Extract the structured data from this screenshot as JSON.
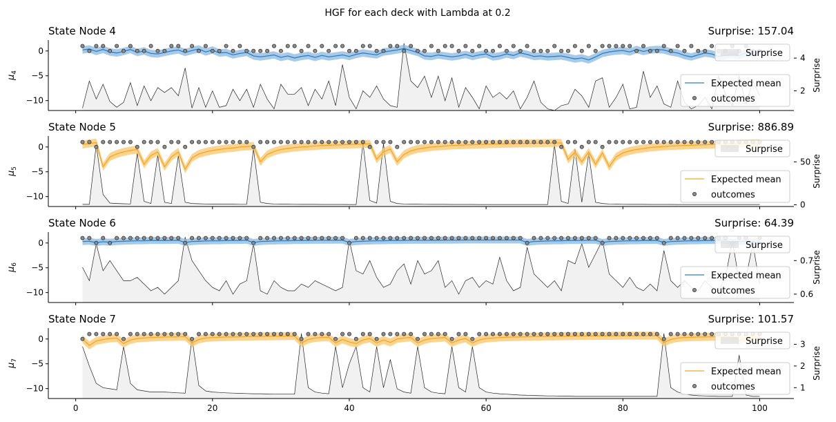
{
  "figure_title": "HGF for each deck with Lambda at 0.2",
  "chart_data": [
    {
      "type": "line",
      "title": "State Node 4",
      "surprise_label": "Surprise: 157.04",
      "ylabel": "μ4",
      "ylabel_sub": "4",
      "y2label": "Surprise",
      "xlim": [
        -4,
        105
      ],
      "ylim": [
        -12,
        2.2
      ],
      "yticks": [
        0,
        -5,
        -10
      ],
      "y2lim": [
        0.8,
        5.1
      ],
      "y2ticks": [
        2,
        4
      ],
      "xticks": [
        0,
        20,
        40,
        60,
        80,
        100
      ],
      "color": "#2d7dc4",
      "band_color": "#88b8e0",
      "legend": {
        "mean": "Expected mean",
        "outcomes": "outcomes",
        "surprise": "Surprise"
      },
      "outcomes": [
        1,
        0,
        1,
        1,
        0,
        1,
        0,
        1,
        0,
        0,
        1,
        0,
        0,
        1,
        1,
        0,
        1,
        0,
        1,
        0,
        0,
        1,
        0,
        1,
        0,
        0,
        0,
        0,
        1,
        0,
        1,
        1,
        0,
        1,
        0,
        1,
        0,
        1,
        1,
        0,
        0,
        1,
        1,
        0,
        0,
        1,
        1,
        0,
        1,
        0,
        0,
        1,
        0,
        1,
        1,
        0,
        1,
        0,
        1,
        0,
        0,
        1,
        0,
        1,
        0,
        1,
        0,
        0,
        0,
        1,
        0,
        0,
        1,
        0,
        1,
        0,
        1,
        1,
        1,
        1,
        1,
        0,
        1,
        0,
        0,
        1,
        0,
        1,
        0,
        1,
        0,
        0,
        1,
        0,
        0,
        1,
        0,
        1,
        0,
        0
      ],
      "surprise": [
        0.95,
        2.6,
        1.5,
        2.4,
        1.35,
        1.0,
        1.3,
        2.5,
        1.1,
        2.3,
        1.4,
        2.2,
        1.9,
        2.2,
        1.7,
        3.4,
        0.95,
        2.2,
        1.0,
        2.0,
        1.0,
        1.1,
        2.1,
        1.4,
        2.1,
        1.0,
        2.4,
        1.5,
        0.9,
        2.4,
        1.8,
        1.8,
        2.2,
        1.1,
        2.1,
        1.5,
        2.6,
        1.1,
        3.6,
        1.6,
        0.9,
        2.0,
        1.6,
        2.3,
        1.5,
        1.1,
        1.0,
        4.9,
        2.6,
        2.2,
        2.9,
        1.6,
        2.9,
        1.4,
        2.8,
        1.0,
        2.2,
        1.6,
        0.9,
        2.3,
        1.6,
        1.9,
        1.5,
        2.0,
        0.9,
        1.6,
        2.6,
        1.3,
        0.9,
        0.8,
        1.1,
        1.2,
        2.1,
        1.7,
        1.0,
        2.6,
        2.8,
        1.0,
        1.6,
        2.4,
        0.9,
        1.0,
        3.2,
        1.6,
        2.3,
        1.2,
        1.0,
        2.6,
        1.3,
        0.9,
        1.1,
        1.6,
        0.9,
        2.9,
        1.8,
        1.1,
        2.9,
        1.2,
        2.6,
        1.7
      ],
      "mean": [
        0.2,
        0.4,
        -0.1,
        0.3,
        -0.2,
        -0.4,
        -0.1,
        0.3,
        -0.3,
        0.0,
        -0.5,
        -0.6,
        -0.3,
        0.0,
        0.2,
        -0.3,
        0.1,
        0.4,
        -0.2,
        0.2,
        -0.4,
        -0.3,
        -0.8,
        -0.5,
        -0.3,
        -1.0,
        -1.2,
        -1.0,
        -0.8,
        -1.3,
        -1.0,
        -1.4,
        -1.1,
        -0.9,
        -1.3,
        -0.9,
        -1.2,
        -1.0,
        -0.8,
        -1.1,
        -0.7,
        -0.4,
        -0.6,
        -0.8,
        -0.2,
        0.0,
        0.2,
        0.5,
        0.1,
        -0.3,
        -1.0,
        -1.1,
        -0.8,
        -1.0,
        -1.2,
        -1.0,
        -0.7,
        -1.1,
        -0.8,
        -0.6,
        -1.2,
        -1.0,
        -0.6,
        -0.9,
        -0.4,
        -0.7,
        -1.1,
        -1.0,
        -1.2,
        -1.1,
        -1.0,
        -1.3,
        -1.6,
        -1.4,
        -1.8,
        -1.2,
        -0.5,
        -0.2,
        0.0,
        0.1,
        -0.2,
        0.3,
        -0.1,
        0.2,
        0.3,
        0.2,
        -0.2,
        -0.4,
        -0.9,
        -1.2,
        -0.8,
        -0.4,
        -0.6,
        -1.1,
        -0.9,
        -0.7,
        -0.9,
        -0.4,
        -0.6,
        -0.3
      ],
      "band": 0.75
    },
    {
      "type": "line",
      "title": "State Node 5",
      "surprise_label": "Surprise: 886.89",
      "ylabel": "μ5",
      "ylabel_sub": "5",
      "y2label": "Surprise",
      "xlim": [
        -4,
        105
      ],
      "ylim": [
        -12,
        2.2
      ],
      "yticks": [
        0,
        -5,
        -10
      ],
      "y2lim": [
        -2,
        80
      ],
      "y2ticks": [
        0,
        50
      ],
      "xticks": [
        0,
        20,
        40,
        60,
        80,
        100
      ],
      "color": "#f5a623",
      "band_color": "#f9c56b",
      "legend": {
        "mean": "Expected mean",
        "outcomes": "outcomes",
        "surprise": "Surprise"
      },
      "outcomes": [
        1,
        1,
        0,
        1,
        1,
        1,
        1,
        1,
        0,
        1,
        1,
        1,
        0,
        1,
        1,
        0,
        1,
        1,
        1,
        1,
        1,
        1,
        1,
        1,
        1,
        0,
        1,
        1,
        1,
        1,
        1,
        1,
        1,
        1,
        1,
        1,
        1,
        1,
        1,
        1,
        1,
        1,
        0,
        1,
        1,
        1,
        0,
        1,
        1,
        1,
        1,
        1,
        1,
        1,
        1,
        1,
        1,
        1,
        1,
        1,
        1,
        1,
        1,
        1,
        1,
        1,
        1,
        1,
        1,
        1,
        0,
        1,
        1,
        0,
        1,
        1,
        0,
        1,
        1,
        1,
        1,
        1,
        1,
        1,
        1,
        1,
        1,
        1,
        1,
        1,
        1,
        1,
        1,
        1,
        1,
        1,
        1,
        1,
        1,
        1
      ],
      "surprise": [
        0.5,
        0.5,
        70,
        12,
        2,
        1.5,
        1.2,
        1.0,
        60,
        4,
        1.5,
        58,
        3,
        1.5,
        57,
        3,
        1.5,
        1.2,
        1.0,
        0.9,
        0.8,
        0.7,
        0.7,
        0.6,
        0.6,
        65,
        3,
        1.5,
        1.0,
        0.8,
        0.7,
        0.6,
        0.5,
        0.5,
        0.5,
        0.4,
        0.4,
        0.4,
        0.4,
        0.3,
        0.3,
        72,
        5,
        2,
        71,
        4,
        1.5,
        1.0,
        0.8,
        0.7,
        0.6,
        0.5,
        0.5,
        0.5,
        0.4,
        0.4,
        0.4,
        0.4,
        0.3,
        0.3,
        0.3,
        0.3,
        0.3,
        0.3,
        0.3,
        0.3,
        0.3,
        0.3,
        0.3,
        70,
        4,
        1.5,
        65,
        3,
        60,
        3,
        1.5,
        1.0,
        0.8,
        0.6,
        0.5,
        0.5,
        0.5,
        0.4,
        0.4,
        0.4,
        0.4,
        0.3,
        0.3,
        0.3,
        0.3,
        0.3,
        0.3,
        0.3,
        0.3,
        0.3,
        0.3,
        0.3,
        0.3,
        0.3
      ],
      "mean": [
        0.5,
        0.7,
        0.9,
        -4.0,
        -2.0,
        -1.4,
        -1.0,
        -0.7,
        -0.5,
        -3.5,
        -1.7,
        -1.0,
        -4.0,
        -2.0,
        -1.0,
        -4.5,
        -2.2,
        -1.4,
        -1.0,
        -0.7,
        -0.5,
        -0.3,
        -0.2,
        0.0,
        0.1,
        0.2,
        -3.0,
        -1.5,
        -0.9,
        -0.5,
        -0.3,
        -0.1,
        0.0,
        0.1,
        0.2,
        0.3,
        0.35,
        0.4,
        0.45,
        0.5,
        0.55,
        0.6,
        0.65,
        -2.5,
        -1.0,
        -0.4,
        -3.0,
        -1.5,
        -0.8,
        -0.4,
        -0.2,
        0.0,
        0.1,
        0.2,
        0.3,
        0.35,
        0.4,
        0.45,
        0.5,
        0.55,
        0.6,
        0.62,
        0.65,
        0.68,
        0.7,
        0.72,
        0.74,
        0.76,
        0.78,
        0.8,
        0.82,
        -2.5,
        -1.0,
        -3.0,
        -1.0,
        -3.5,
        -1.2,
        -4.0,
        -2.0,
        -1.2,
        -0.8,
        -0.5,
        -0.3,
        -0.1,
        0.0,
        0.1,
        0.2,
        0.25,
        0.3,
        0.35,
        0.4,
        0.45,
        0.5,
        0.55,
        0.6,
        0.62,
        0.65,
        0.68,
        0.7,
        0.72
      ],
      "band": 0.8
    },
    {
      "type": "line",
      "title": "State Node 6",
      "surprise_label": "Surprise: 64.39",
      "ylabel": "μ6",
      "ylabel_sub": "6",
      "y2label": "Surprise",
      "xlim": [
        -4,
        105
      ],
      "ylim": [
        -12,
        2.2
      ],
      "yticks": [
        0,
        -5,
        -10
      ],
      "y2lim": [
        0.575,
        0.785
      ],
      "y2ticks": [
        0.6,
        0.7
      ],
      "xticks": [
        0,
        20,
        40,
        60,
        80,
        100
      ],
      "color": "#2d7dc4",
      "band_color": "#88b8e0",
      "legend": {
        "mean": "Expected mean",
        "outcomes": "outcomes",
        "surprise": "Surprise"
      },
      "outcomes": [
        1,
        1,
        0,
        1,
        0,
        1,
        1,
        1,
        1,
        1,
        1,
        1,
        1,
        1,
        1,
        0,
        1,
        1,
        1,
        1,
        1,
        1,
        1,
        1,
        1,
        0,
        1,
        1,
        1,
        1,
        1,
        1,
        1,
        1,
        1,
        1,
        1,
        1,
        1,
        0,
        1,
        1,
        1,
        1,
        1,
        1,
        1,
        1,
        1,
        1,
        1,
        1,
        1,
        1,
        1,
        1,
        1,
        1,
        1,
        1,
        1,
        1,
        1,
        1,
        1,
        0,
        1,
        1,
        1,
        1,
        1,
        1,
        1,
        1,
        1,
        1,
        0,
        1,
        1,
        1,
        1,
        1,
        1,
        1,
        1,
        0,
        1,
        1,
        1,
        1,
        1,
        1,
        1,
        1,
        1,
        0,
        1,
        1,
        0,
        1
      ],
      "surprise": [
        0.68,
        0.64,
        0.75,
        0.67,
        0.7,
        0.67,
        0.64,
        0.64,
        0.65,
        0.63,
        0.61,
        0.62,
        0.6,
        0.62,
        0.64,
        0.77,
        0.7,
        0.67,
        0.64,
        0.62,
        0.61,
        0.64,
        0.6,
        0.63,
        0.64,
        0.75,
        0.61,
        0.6,
        0.64,
        0.62,
        0.61,
        0.61,
        0.63,
        0.62,
        0.64,
        0.63,
        0.62,
        0.61,
        0.62,
        0.76,
        0.67,
        0.66,
        0.7,
        0.65,
        0.62,
        0.63,
        0.67,
        0.69,
        0.63,
        0.7,
        0.66,
        0.67,
        0.7,
        0.62,
        0.64,
        0.6,
        0.64,
        0.65,
        0.62,
        0.64,
        0.63,
        0.71,
        0.64,
        0.61,
        0.62,
        0.74,
        0.66,
        0.64,
        0.62,
        0.64,
        0.61,
        0.7,
        0.69,
        0.75,
        0.68,
        0.72,
        0.76,
        0.66,
        0.64,
        0.62,
        0.65,
        0.62,
        0.61,
        0.63,
        0.61,
        0.73,
        0.64,
        0.62,
        0.64,
        0.62,
        0.61,
        0.64,
        0.62,
        0.61,
        0.65,
        0.76,
        0.64,
        0.65,
        0.75,
        0.63
      ],
      "mean": [
        0.3,
        0.35,
        0.1,
        0.25,
        0.15,
        0.3,
        0.35,
        0.4,
        0.45,
        0.45,
        0.5,
        0.5,
        0.5,
        0.52,
        0.55,
        0.1,
        0.3,
        0.35,
        0.4,
        0.45,
        0.45,
        0.5,
        0.5,
        0.52,
        0.55,
        0.1,
        0.3,
        0.35,
        0.4,
        0.45,
        0.45,
        0.5,
        0.5,
        0.52,
        0.55,
        0.55,
        0.55,
        0.56,
        0.57,
        0.1,
        0.3,
        0.35,
        0.4,
        0.45,
        0.45,
        0.5,
        0.5,
        0.52,
        0.55,
        0.55,
        0.55,
        0.56,
        0.57,
        0.58,
        0.58,
        0.59,
        0.6,
        0.6,
        0.6,
        0.6,
        0.6,
        0.6,
        0.6,
        0.6,
        0.6,
        0.1,
        0.3,
        0.35,
        0.4,
        0.45,
        0.45,
        0.5,
        0.5,
        0.52,
        0.55,
        0.55,
        0.1,
        0.3,
        0.35,
        0.4,
        0.45,
        0.45,
        0.5,
        0.5,
        0.52,
        0.1,
        0.3,
        0.35,
        0.4,
        0.45,
        0.45,
        0.5,
        0.5,
        0.52,
        0.55,
        0.1,
        0.3,
        0.35,
        0.1,
        0.3
      ],
      "band": 0.7
    },
    {
      "type": "line",
      "title": "State Node 7",
      "surprise_label": "Surprise: 101.57",
      "ylabel": "μ7",
      "ylabel_sub": "7",
      "y2label": "Surprise",
      "xlim": [
        -4,
        105
      ],
      "ylim": [
        -12,
        2.2
      ],
      "yticks": [
        0,
        -5,
        -10
      ],
      "y2lim": [
        0.5,
        3.75
      ],
      "y2ticks": [
        1,
        2,
        3
      ],
      "xticks": [
        0,
        20,
        40,
        60,
        80,
        100
      ],
      "color": "#f5a623",
      "band_color": "#f9c56b",
      "legend": {
        "mean": "Expected mean",
        "outcomes": "outcomes",
        "surprise": "Surprise"
      },
      "outcomes": [
        0,
        1,
        1,
        1,
        1,
        1,
        0,
        1,
        1,
        1,
        1,
        1,
        1,
        1,
        1,
        1,
        0,
        1,
        1,
        1,
        1,
        1,
        1,
        1,
        1,
        1,
        1,
        1,
        1,
        1,
        1,
        1,
        0,
        1,
        1,
        1,
        1,
        0,
        1,
        1,
        0,
        1,
        1,
        0,
        1,
        1,
        1,
        1,
        1,
        0,
        1,
        1,
        1,
        1,
        0,
        1,
        1,
        0,
        1,
        1,
        1,
        1,
        1,
        1,
        1,
        1,
        1,
        1,
        1,
        1,
        1,
        1,
        1,
        1,
        1,
        1,
        1,
        1,
        1,
        1,
        1,
        1,
        1,
        1,
        1,
        0,
        1,
        1,
        1,
        1,
        1,
        1,
        1,
        1,
        1,
        1,
        1,
        1,
        1,
        1
      ],
      "surprise": [
        2.9,
        2.0,
        1.2,
        1.0,
        0.95,
        0.9,
        2.9,
        1.2,
        0.9,
        0.85,
        0.8,
        0.8,
        0.8,
        0.78,
        0.76,
        0.75,
        3.3,
        1.1,
        0.85,
        0.8,
        0.78,
        0.76,
        0.75,
        0.74,
        0.73,
        0.72,
        0.72,
        0.71,
        0.7,
        0.7,
        0.7,
        0.7,
        3.5,
        1.0,
        0.8,
        0.75,
        0.72,
        2.9,
        1.0,
        2.1,
        2.9,
        1.0,
        0.8,
        2.9,
        1.0,
        2.3,
        0.95,
        0.8,
        0.75,
        2.9,
        1.0,
        0.8,
        0.75,
        0.72,
        2.9,
        1.0,
        0.8,
        2.9,
        1.0,
        0.8,
        0.75,
        0.72,
        0.7,
        0.68,
        0.66,
        0.65,
        0.64,
        0.63,
        0.62,
        0.62,
        0.61,
        0.61,
        0.6,
        0.6,
        0.6,
        0.6,
        0.6,
        0.6,
        0.6,
        0.6,
        0.6,
        0.6,
        0.6,
        0.6,
        0.6,
        3.5,
        1.0,
        0.8,
        0.7,
        0.66,
        0.63,
        0.62,
        0.61,
        0.6,
        0.6,
        0.6,
        2.5,
        0.66,
        0.6,
        0.6
      ],
      "mean": [
        0.0,
        -1.3,
        -0.4,
        -0.1,
        0.1,
        0.2,
        -0.9,
        -0.2,
        0.1,
        0.2,
        0.3,
        0.35,
        0.4,
        0.42,
        0.45,
        0.48,
        -0.8,
        -0.1,
        0.2,
        0.3,
        0.35,
        0.4,
        0.42,
        0.45,
        0.48,
        0.5,
        0.52,
        0.54,
        0.56,
        0.58,
        0.6,
        0.6,
        -0.8,
        -0.1,
        0.2,
        0.3,
        0.35,
        -0.8,
        -0.1,
        -0.6,
        -0.9,
        -0.2,
        0.1,
        -0.8,
        -0.2,
        -0.7,
        0.0,
        0.2,
        0.3,
        -0.8,
        -0.2,
        0.1,
        0.2,
        0.3,
        -0.8,
        -0.2,
        0.1,
        -0.8,
        -0.2,
        0.1,
        0.2,
        0.3,
        0.35,
        0.4,
        0.42,
        0.45,
        0.48,
        0.5,
        0.52,
        0.54,
        0.56,
        0.58,
        0.6,
        0.6,
        0.62,
        0.62,
        0.63,
        0.64,
        0.65,
        0.66,
        0.66,
        0.67,
        0.67,
        0.68,
        0.68,
        -0.7,
        -0.1,
        0.2,
        0.3,
        0.35,
        0.4,
        0.42,
        0.45,
        0.48,
        0.5,
        0.52,
        -0.3,
        0.2,
        0.35,
        0.4
      ],
      "band": 0.8
    }
  ]
}
